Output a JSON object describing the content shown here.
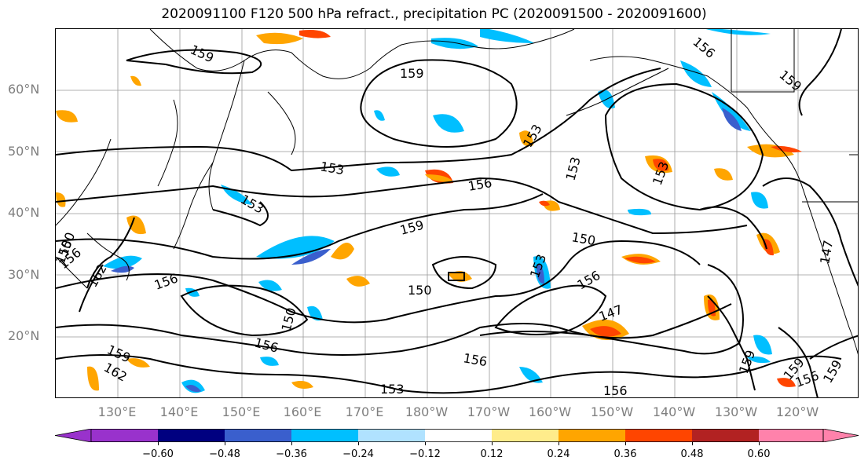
{
  "title": "2020091100 F120 500 hPa refract., precipitation PC (2020091500 - 2020091600)",
  "lat_labels": [
    "60°N",
    "50°N",
    "40°N",
    "30°N",
    "20°N"
  ],
  "lon_labels": [
    "130°E",
    "140°E",
    "150°E",
    "160°E",
    "170°E",
    "180°W",
    "170°W",
    "160°W",
    "150°W",
    "140°W",
    "130°W",
    "120°W"
  ],
  "contour_labels": [
    "159",
    "159",
    "153",
    "153",
    "156",
    "159",
    "150",
    "153",
    "153",
    "153",
    "156",
    "150",
    "150",
    "156",
    "162",
    "150",
    "156",
    "153",
    "147",
    "159",
    "156",
    "162",
    "156",
    "159",
    "159",
    "156",
    "159",
    "153",
    "156",
    "150",
    "147",
    "159",
    "156"
  ],
  "colorbar": {
    "ticks": [
      "−0.60",
      "−0.48",
      "−0.36",
      "−0.24",
      "−0.12",
      "0.12",
      "0.24",
      "0.36",
      "0.48",
      "0.60"
    ],
    "colors": [
      "#9932cc",
      "#000080",
      "#3a5fcd",
      "#00bfff",
      "#b0e2ff",
      "#ffffff",
      "#ffec8b",
      "#ffa500",
      "#ff4500",
      "#b22222",
      "#ff82ab"
    ]
  },
  "colors": {
    "ocean": "#ffffff",
    "coast": "#000000",
    "contour": "#000000",
    "grid": "#999999",
    "axis_label": "#7f7f7f"
  }
}
